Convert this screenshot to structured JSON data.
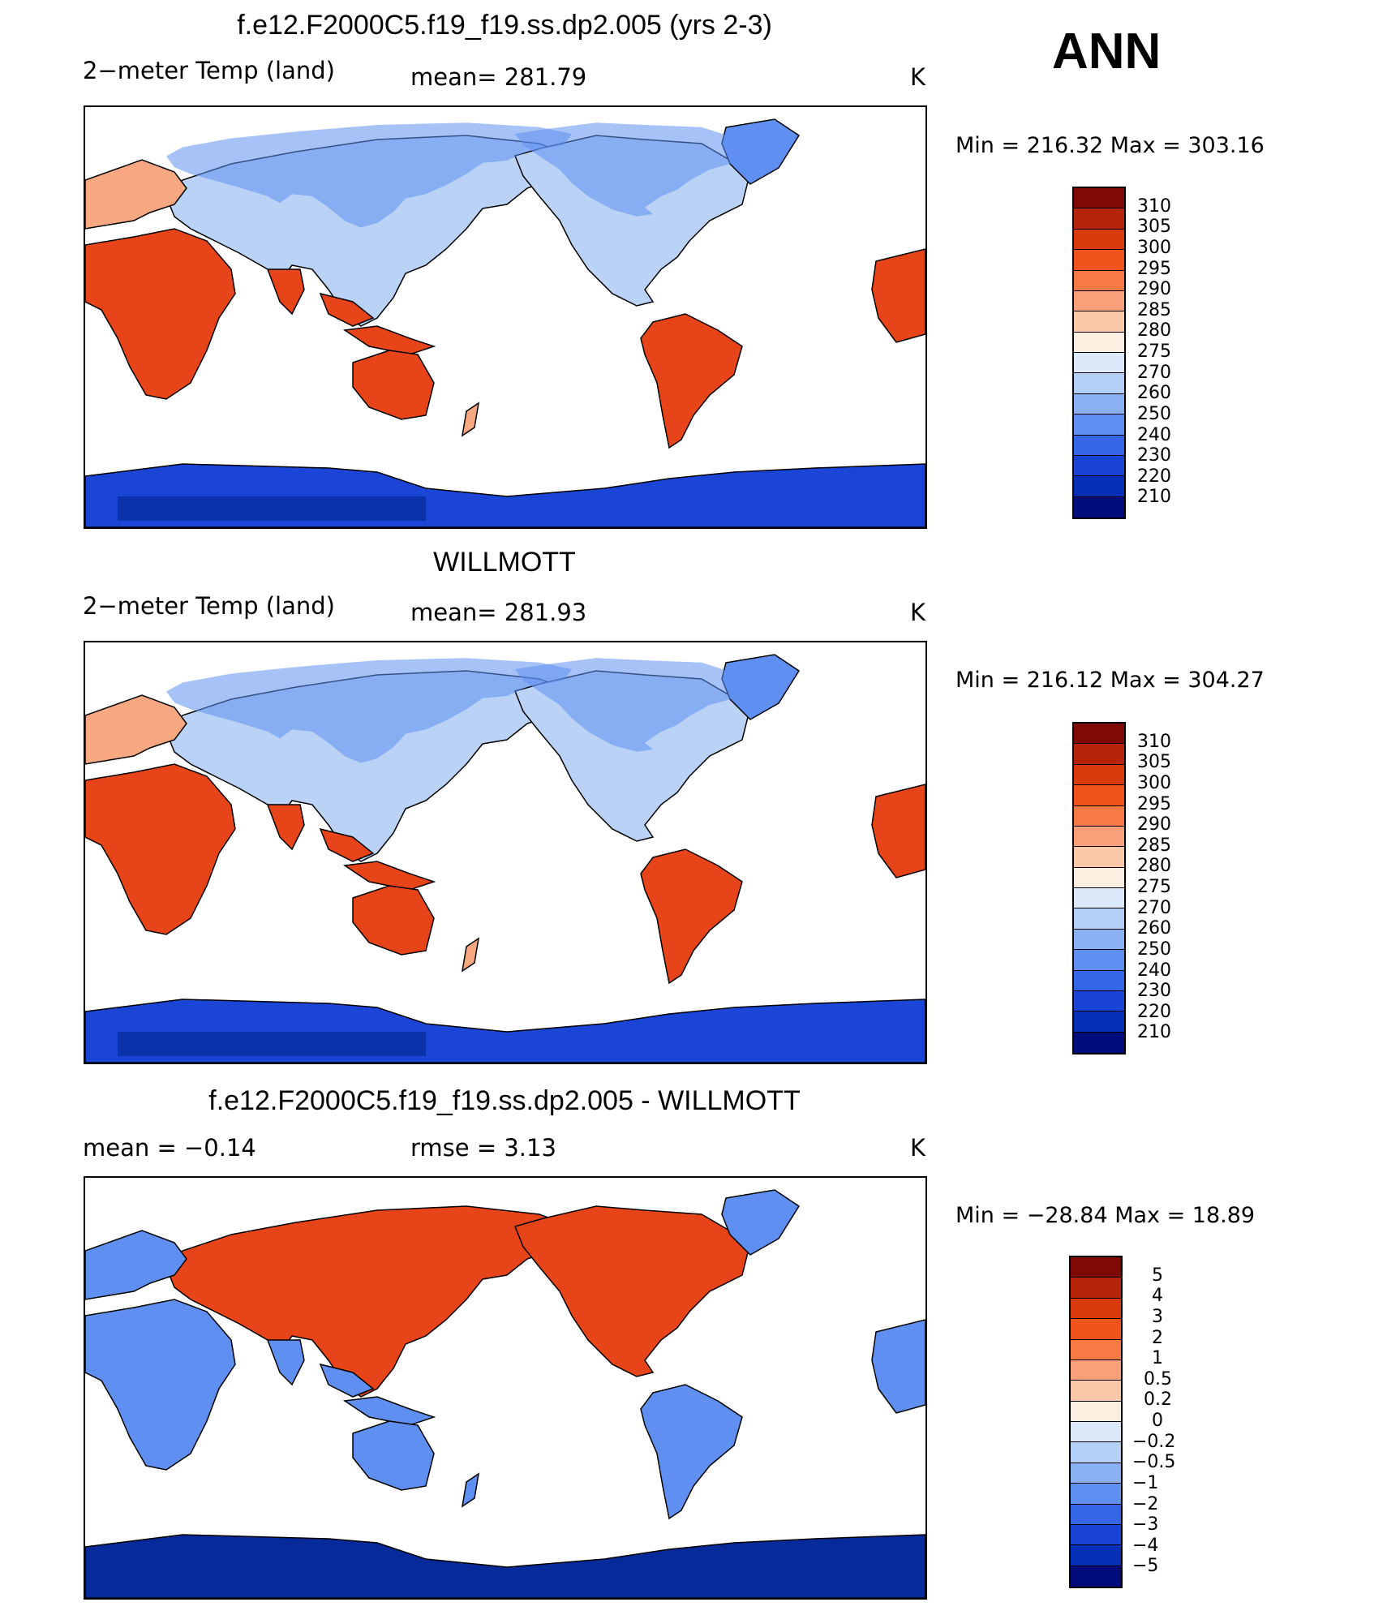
{
  "season": "ANN",
  "panels": [
    {
      "title": "f.e12.F2000C5.f19_f19.ss.dp2.005 (yrs 2-3)",
      "left": "2−meter Temp (land)",
      "center": "mean=  281.79",
      "right": "K",
      "minmax": "Min  =  216.32  Max  =  303.16",
      "mode": "abs"
    },
    {
      "title": "WILLMOTT",
      "left": "2−meter Temp (land)",
      "center": "mean=  281.93",
      "right": "K",
      "minmax": "Min  =  216.12  Max  =  304.27",
      "mode": "abs"
    },
    {
      "title": "f.e12.F2000C5.f19_f19.ss.dp2.005 - WILLMOTT",
      "left": "mean  =     −0.14",
      "center": "rmse  =     3.13",
      "right": "K",
      "minmax": "Min  =  −28.84  Max  =     18.89",
      "mode": "diff"
    }
  ],
  "colorbars": {
    "abs": {
      "labels": [
        "310",
        "305",
        "300",
        "295",
        "290",
        "285",
        "280",
        "275",
        "270",
        "260",
        "250",
        "240",
        "230",
        "220",
        "210"
      ],
      "colors": [
        "#7f0a04",
        "#b52308",
        "#d93a0c",
        "#f0531b",
        "#f77a45",
        "#f9a07a",
        "#fcc8aa",
        "#fdeee2",
        "#dbe9fa",
        "#b4cff6",
        "#8ab2f3",
        "#5f8ff0",
        "#3566e6",
        "#1843d4",
        "#062fb8",
        "#020c7a"
      ]
    },
    "diff": {
      "labels": [
        "5",
        "4",
        "3",
        "2",
        "1",
        "0.5",
        "0.2",
        "0",
        "−0.2",
        "−0.5",
        "−1",
        "−2",
        "−3",
        "−4",
        "−5"
      ],
      "colors": [
        "#7f0a04",
        "#b52308",
        "#d93a0c",
        "#f0531b",
        "#f77a45",
        "#f9a07a",
        "#fcc8aa",
        "#fdeee2",
        "#dbe9fa",
        "#b4cff6",
        "#8ab2f3",
        "#5f8ff0",
        "#3566e6",
        "#1843d4",
        "#062fb8",
        "#020c7a"
      ]
    }
  },
  "map_fill": {
    "warm": "#e8441a",
    "hot": "#f05a24",
    "mid": "#f8a880",
    "cool": "#b9d2f6",
    "cold": "#5f8ff0",
    "polar": "#1a45d6",
    "deep": "#062a9a"
  }
}
